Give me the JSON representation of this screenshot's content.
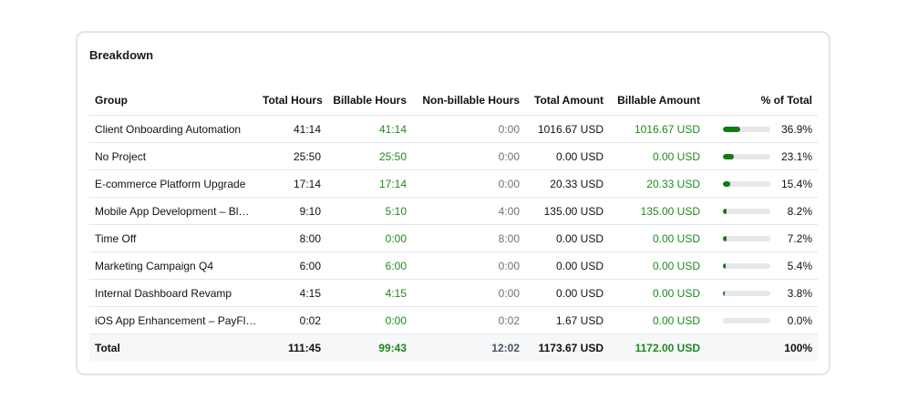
{
  "header": {
    "title": "Breakdown"
  },
  "table": {
    "columns": [
      "Group",
      "Total Hours",
      "Billable Hours",
      "Non-billable Hours",
      "Total Amount",
      "Billable Amount",
      "% of Total"
    ],
    "rows": [
      {
        "group": "Client Onboarding Automation",
        "total_hours": "41:14",
        "billable_hours": "41:14",
        "nonbillable_hours": "0:00",
        "total_amount": "1016.67 USD",
        "billable_amount": "1016.67 USD",
        "percent": 36.9,
        "percent_label": "36.9%"
      },
      {
        "group": "No Project",
        "total_hours": "25:50",
        "billable_hours": "25:50",
        "nonbillable_hours": "0:00",
        "total_amount": "0.00 USD",
        "billable_amount": "0.00 USD",
        "percent": 23.1,
        "percent_label": "23.1%"
      },
      {
        "group": "E-commerce Platform Upgrade",
        "total_hours": "17:14",
        "billable_hours": "17:14",
        "nonbillable_hours": "0:00",
        "total_amount": "20.33 USD",
        "billable_amount": "20.33 USD",
        "percent": 15.4,
        "percent_label": "15.4%"
      },
      {
        "group": "Mobile App Development – Bl…",
        "total_hours": "9:10",
        "billable_hours": "5:10",
        "nonbillable_hours": "4:00",
        "total_amount": "135.00 USD",
        "billable_amount": "135.00 USD",
        "percent": 8.2,
        "percent_label": "8.2%"
      },
      {
        "group": "Time Off",
        "total_hours": "8:00",
        "billable_hours": "0:00",
        "nonbillable_hours": "8:00",
        "total_amount": "0.00 USD",
        "billable_amount": "0.00 USD",
        "percent": 7.2,
        "percent_label": "7.2%"
      },
      {
        "group": "Marketing Campaign Q4",
        "total_hours": "6:00",
        "billable_hours": "6:00",
        "nonbillable_hours": "0:00",
        "total_amount": "0.00 USD",
        "billable_amount": "0.00 USD",
        "percent": 5.4,
        "percent_label": "5.4%"
      },
      {
        "group": "Internal Dashboard Revamp",
        "total_hours": "4:15",
        "billable_hours": "4:15",
        "nonbillable_hours": "0:00",
        "total_amount": "0.00 USD",
        "billable_amount": "0.00 USD",
        "percent": 3.8,
        "percent_label": "3.8%"
      },
      {
        "group": "iOS App Enhancement – PayFl…",
        "total_hours": "0:02",
        "billable_hours": "0:00",
        "nonbillable_hours": "0:02",
        "total_amount": "1.67 USD",
        "billable_amount": "0.00 USD",
        "percent": 0.0,
        "percent_label": "0.0%"
      }
    ],
    "total": {
      "group": "Total",
      "total_hours": "111:45",
      "billable_hours": "99:43",
      "nonbillable_hours": "12:02",
      "total_amount": "1173.67 USD",
      "billable_amount": "1172.00 USD",
      "percent_label": "100%"
    }
  }
}
